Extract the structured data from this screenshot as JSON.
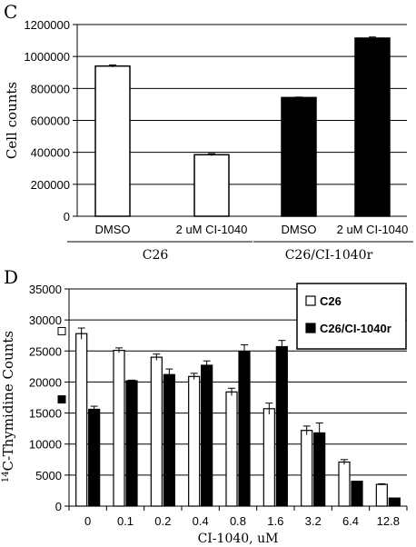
{
  "chart_data": [
    {
      "panel": "C",
      "type": "bar",
      "ylabel": "Cell counts",
      "ylim": [
        0,
        1200000
      ],
      "yticks": [
        0,
        200000,
        400000,
        600000,
        800000,
        1000000,
        1200000
      ],
      "grid": true,
      "categories": [
        "DMSO",
        "2 uM CI-1040",
        "DMSO",
        "2 uM CI-1040"
      ],
      "groups": [
        {
          "label": "C26",
          "indices": [
            0,
            1
          ]
        },
        {
          "label": "C26/CI-1040r",
          "indices": [
            2,
            3
          ]
        }
      ],
      "fills": [
        "#ffffff",
        "#ffffff",
        "#000000",
        "#000000"
      ],
      "values": [
        940000,
        385000,
        743000,
        1115000
      ],
      "errors": [
        7000,
        7000,
        3000,
        7000
      ]
    },
    {
      "panel": "D",
      "type": "bar",
      "ylabel_sup": "14",
      "ylabel": "C-Thymidine Counts",
      "xlabel": "CI-1040, uM",
      "ylim": [
        0,
        35000
      ],
      "yticks": [
        0,
        5000,
        10000,
        15000,
        20000,
        25000,
        30000,
        35000
      ],
      "grid": true,
      "legend_position": "top-right",
      "categories": [
        "0",
        "0.1",
        "0.2",
        "0.4",
        "0.8",
        "1.6",
        "3.2",
        "6.4",
        "12.8"
      ],
      "series": [
        {
          "name": "C26",
          "color": "#ffffff",
          "values": [
            27800,
            25100,
            24000,
            20900,
            18400,
            15700,
            12200,
            7100,
            3500
          ],
          "errors": [
            900,
            400,
            500,
            500,
            600,
            900,
            700,
            400,
            100
          ]
        },
        {
          "name": "C26/CI-1040r",
          "color": "#000000",
          "values": [
            15600,
            20200,
            21200,
            22700,
            24900,
            25700,
            11800,
            4000,
            1300
          ],
          "errors": [
            500,
            100,
            900,
            700,
            1100,
            1000,
            1600,
            0,
            0
          ]
        }
      ],
      "side_markers": [
        {
          "symbol": "open-square",
          "value": 28200
        },
        {
          "symbol": "filled-square",
          "value": 17200
        }
      ]
    }
  ]
}
